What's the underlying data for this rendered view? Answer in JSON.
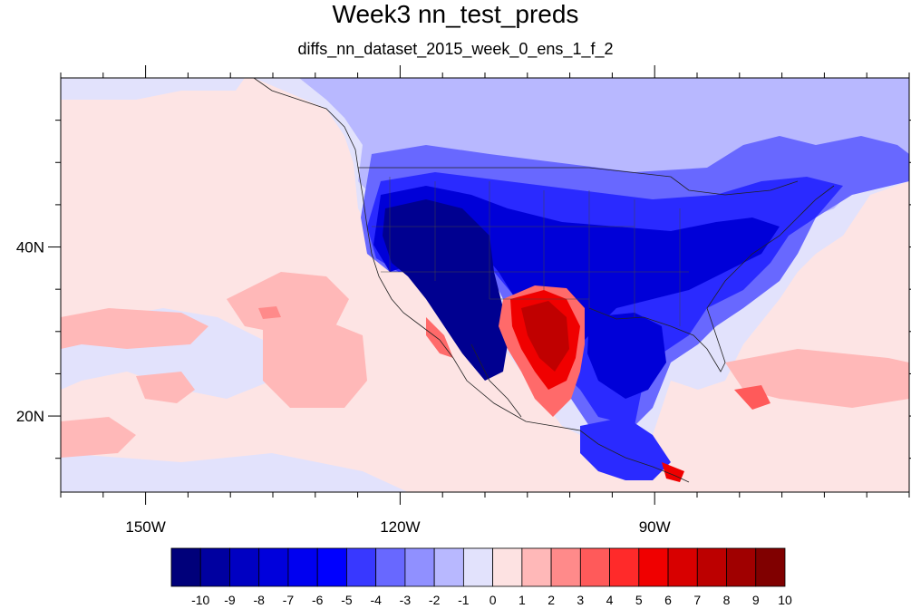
{
  "title": "Week3 nn_test_preds",
  "subtitle": "diffs_nn_dataset_2015_week_0_ens_1_f_2",
  "map": {
    "lon_ticks": [
      {
        "value": -150,
        "label": "150W"
      },
      {
        "value": -120,
        "label": "120W"
      },
      {
        "value": -90,
        "label": "90W"
      }
    ],
    "lat_ticks": [
      {
        "value": 40,
        "label": "40N"
      },
      {
        "value": 20,
        "label": "20N"
      }
    ],
    "lon_range": [
      -160,
      -60
    ],
    "lat_range": [
      11,
      60
    ]
  },
  "colorbar": {
    "labels": [
      "-10",
      "-9",
      "-8",
      "-7",
      "-6",
      "-5",
      "-4",
      "-3",
      "-2",
      "-1",
      "0",
      "1",
      "2",
      "3",
      "4",
      "5",
      "6",
      "7",
      "8",
      "9",
      "10"
    ],
    "colors": [
      "#00007a",
      "#0000a0",
      "#0000c2",
      "#0000dc",
      "#0000f0",
      "#0000ff",
      "#3838ff",
      "#6868ff",
      "#9090ff",
      "#b8b8ff",
      "#e2e2fc",
      "#fde2e2",
      "#ffb8b8",
      "#ff8a8a",
      "#ff5a5a",
      "#ff2a2a",
      "#f00000",
      "#d80000",
      "#bc0000",
      "#a00000",
      "#800000"
    ]
  },
  "fields": {
    "ocean": "#fde4e4",
    "land_cool": "#e2e2fc",
    "blue_light": "#b8b8ff",
    "blue_mid": "#6868ff",
    "blue_strong": "#2a2aff",
    "blue_deep": "#0000d8",
    "blue_darkest": "#000090",
    "red_light": "#ffb8b8",
    "red_mid": "#ff6a6a",
    "red_strong": "#f00000",
    "red_deep": "#c00000"
  }
}
